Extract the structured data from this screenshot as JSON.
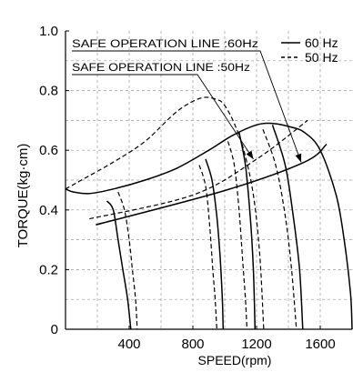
{
  "chart_data": {
    "type": "line",
    "xlabel": "SPEED(rpm)",
    "ylabel": "TORQUE(kg·cm)",
    "xlim": [
      0,
      1800
    ],
    "ylim": [
      0,
      1.0
    ],
    "x_ticks": [
      "400",
      "800",
      "1200",
      "1600"
    ],
    "y_ticks": [
      "0",
      "0.2",
      "0.4",
      "0.6",
      "0.8",
      "1.0"
    ],
    "grid": "dashed",
    "legend_position": "top-right",
    "legend": [
      {
        "label": "60 Hz",
        "style": "solid"
      },
      {
        "label": "50 Hz",
        "style": "dashed"
      }
    ],
    "annotations": [
      {
        "text": "SAFE OPERATION LINE :60Hz",
        "arrow_to": {
          "x": 1480,
          "y": 0.56
        }
      },
      {
        "text": "SAFE OPERATION LINE :50Hz",
        "arrow_to": {
          "x": 1180,
          "y": 0.57
        }
      }
    ],
    "series": [
      {
        "name": "60 Hz",
        "style": "solid",
        "kind": "torque",
        "points": [
          [
            0,
            0.47
          ],
          [
            50,
            0.46
          ],
          [
            150,
            0.455
          ],
          [
            300,
            0.47
          ],
          [
            500,
            0.5
          ],
          [
            700,
            0.54
          ],
          [
            900,
            0.6
          ],
          [
            1050,
            0.65
          ],
          [
            1200,
            0.685
          ],
          [
            1300,
            0.69
          ],
          [
            1400,
            0.68
          ],
          [
            1500,
            0.66
          ],
          [
            1600,
            0.6
          ],
          [
            1700,
            0.45
          ],
          [
            1750,
            0.3
          ],
          [
            1790,
            0.12
          ],
          [
            1800,
            0
          ]
        ]
      },
      {
        "name": "60 Hz",
        "style": "solid",
        "kind": "safe-line",
        "points": [
          [
            190,
            0.35
          ],
          [
            1000,
            0.465
          ],
          [
            1500,
            0.56
          ],
          [
            1640,
            0.62
          ]
        ]
      },
      {
        "name": "60 Hz",
        "style": "solid",
        "kind": "drop",
        "points": [
          [
            260,
            0.43
          ],
          [
            300,
            0.4
          ],
          [
            330,
            0.3
          ],
          [
            360,
            0.2
          ],
          [
            390,
            0.1
          ],
          [
            410,
            0
          ]
        ]
      },
      {
        "name": "60 Hz",
        "style": "solid",
        "kind": "drop",
        "points": [
          [
            880,
            0.57
          ],
          [
            920,
            0.5
          ],
          [
            950,
            0.38
          ],
          [
            970,
            0.25
          ],
          [
            985,
            0.1
          ],
          [
            990,
            0
          ]
        ]
      },
      {
        "name": "60 Hz",
        "style": "solid",
        "kind": "drop",
        "points": [
          [
            1090,
            0.66
          ],
          [
            1130,
            0.55
          ],
          [
            1160,
            0.38
          ],
          [
            1180,
            0.2
          ],
          [
            1190,
            0
          ]
        ]
      },
      {
        "name": "60 Hz",
        "style": "solid",
        "kind": "drop",
        "points": [
          [
            1300,
            0.685
          ],
          [
            1380,
            0.55
          ],
          [
            1430,
            0.38
          ],
          [
            1470,
            0.2
          ],
          [
            1490,
            0
          ]
        ]
      },
      {
        "name": "50 Hz",
        "style": "dashed",
        "kind": "torque",
        "points": [
          [
            0,
            0.47
          ],
          [
            100,
            0.5
          ],
          [
            300,
            0.56
          ],
          [
            500,
            0.63
          ],
          [
            700,
            0.73
          ],
          [
            850,
            0.775
          ],
          [
            950,
            0.77
          ],
          [
            1000,
            0.75
          ],
          [
            1060,
            0.69
          ],
          [
            1120,
            0.6
          ],
          [
            1180,
            0.45
          ],
          [
            1220,
            0.25
          ],
          [
            1245,
            0
          ]
        ]
      },
      {
        "name": "50 Hz",
        "style": "dashed",
        "kind": "safe-line",
        "points": [
          [
            150,
            0.37
          ],
          [
            800,
            0.45
          ],
          [
            1200,
            0.57
          ],
          [
            1520,
            0.7
          ]
        ]
      },
      {
        "name": "50 Hz",
        "style": "dashed",
        "kind": "drop",
        "points": [
          [
            330,
            0.46
          ],
          [
            370,
            0.4
          ],
          [
            400,
            0.3
          ],
          [
            420,
            0.2
          ],
          [
            440,
            0.1
          ],
          [
            450,
            0
          ]
        ]
      },
      {
        "name": "50 Hz",
        "style": "dashed",
        "kind": "drop",
        "points": [
          [
            840,
            0.55
          ],
          [
            880,
            0.48
          ],
          [
            905,
            0.35
          ],
          [
            925,
            0.2
          ],
          [
            940,
            0.1
          ],
          [
            950,
            0
          ]
        ]
      },
      {
        "name": "50 Hz",
        "style": "dashed",
        "kind": "drop",
        "points": [
          [
            1020,
            0.63
          ],
          [
            1060,
            0.55
          ],
          [
            1090,
            0.4
          ],
          [
            1110,
            0.25
          ],
          [
            1130,
            0.1
          ],
          [
            1140,
            0
          ]
        ]
      },
      {
        "name": "50 Hz",
        "style": "dashed",
        "kind": "drop",
        "points": [
          [
            1240,
            0.67
          ],
          [
            1320,
            0.55
          ],
          [
            1380,
            0.38
          ],
          [
            1420,
            0.2
          ],
          [
            1450,
            0
          ]
        ]
      }
    ]
  }
}
